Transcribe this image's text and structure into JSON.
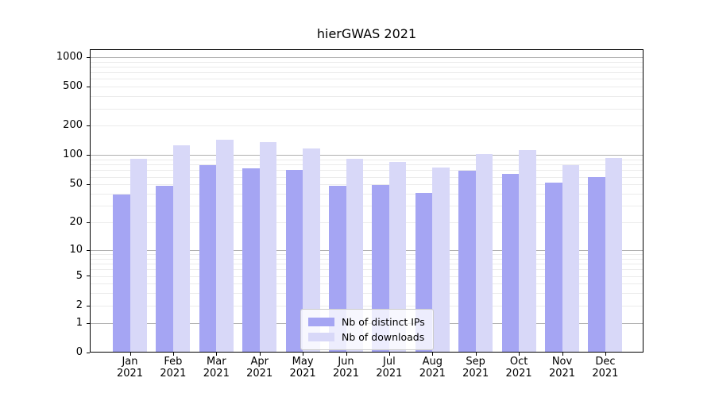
{
  "chart_data": {
    "type": "bar",
    "title": "hierGWAS 2021",
    "categories": [
      "Jan",
      "Feb",
      "Mar",
      "Apr",
      "May",
      "Jun",
      "Jul",
      "Aug",
      "Sep",
      "Oct",
      "Nov",
      "Dec"
    ],
    "tick_year": "2021",
    "series": [
      {
        "name": "Nb of distinct IPs",
        "color": "#a5a5f3",
        "values": [
          39,
          48,
          79,
          73,
          71,
          48,
          49,
          41,
          69,
          64,
          52,
          60
        ]
      },
      {
        "name": "Nb of downloads",
        "color": "#d8d8f8",
        "values": [
          91,
          126,
          145,
          136,
          117,
          92,
          85,
          74,
          103,
          112,
          79,
          94
        ]
      }
    ],
    "yticks": [
      0,
      1,
      2,
      5,
      10,
      20,
      50,
      100,
      200,
      500,
      1000
    ],
    "yscale": "log10(value+1)",
    "ylim": [
      0,
      1200
    ],
    "grid": true,
    "legend_position": "lower center"
  }
}
